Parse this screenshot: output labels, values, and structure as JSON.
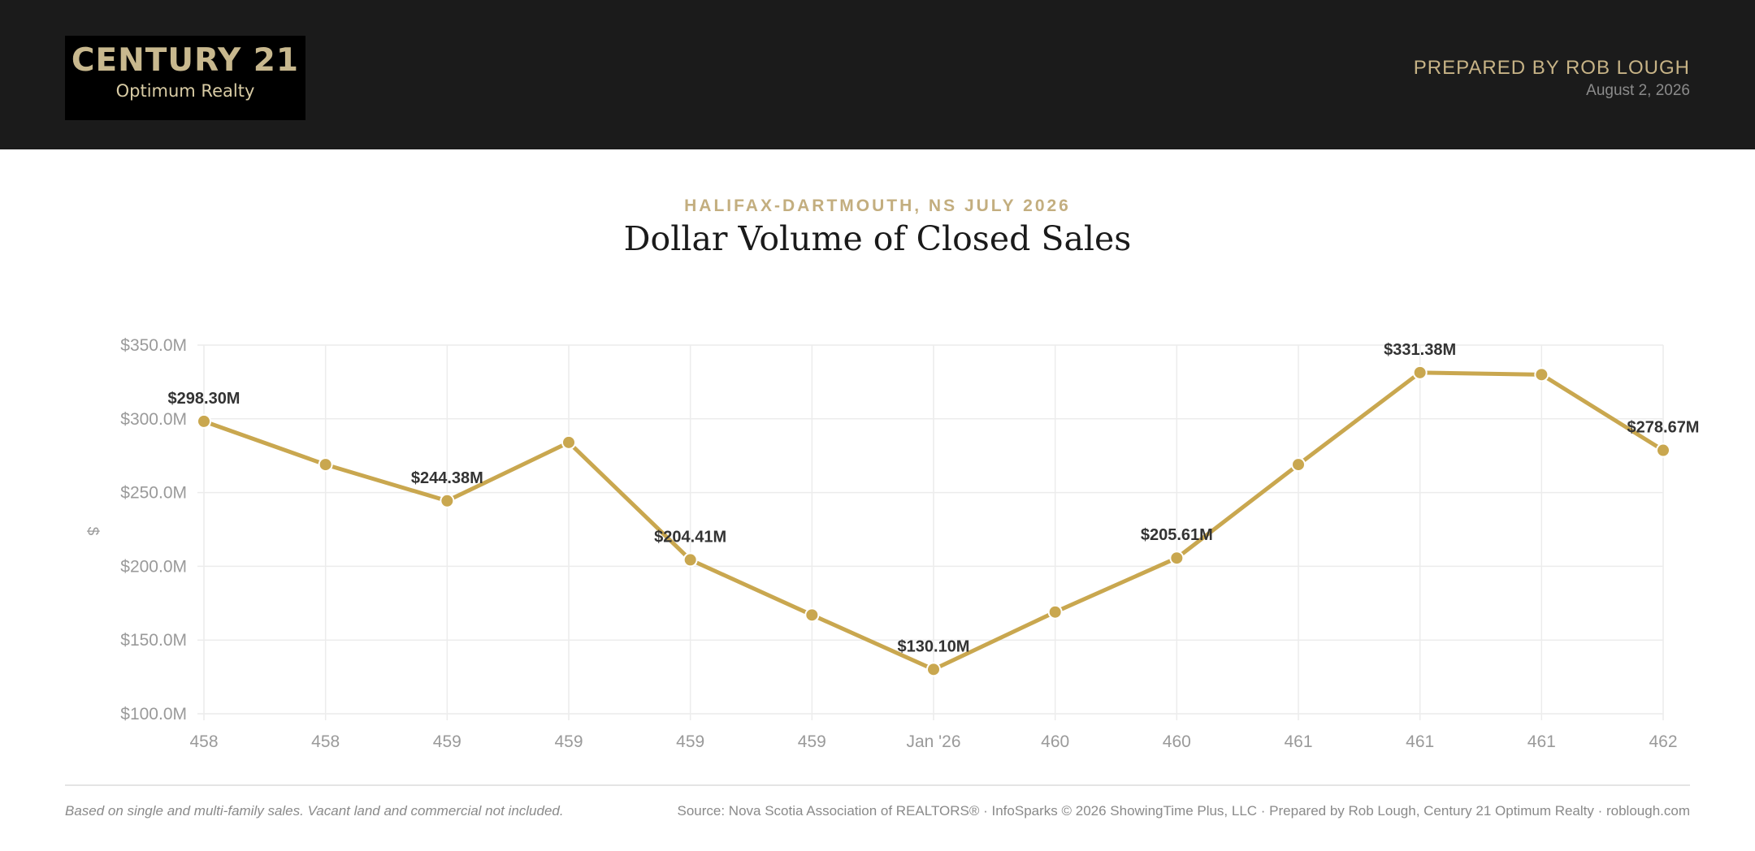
{
  "header": {
    "logo_brand": "CENTURY 21",
    "logo_sub": "Optimum Realty",
    "prepared_by": "PREPARED BY ROB LOUGH",
    "date": "August 2, 2026"
  },
  "report": {
    "subtitle": "HALIFAX-DARTMOUTH, NS JULY 2026",
    "title": "Dollar Volume of Closed Sales"
  },
  "footer": {
    "note": "Based on single and multi-family sales. Vacant land and commercial not included.",
    "source": "Source: Nova Scotia Association of REALTORS® · InfoSparks © 2026 ShowingTime Plus, LLC · Prepared by Rob Lough, Century 21 Optimum Realty · roblough.com"
  },
  "colors": {
    "header_bg": "#1b1b1b",
    "accent_gold": "#c9a74f",
    "grid": "#ececec"
  },
  "chart_data": {
    "type": "line",
    "title": "Dollar Volume of Closed Sales",
    "ylabel": "$",
    "xlabel": "",
    "ylim": [
      100,
      350
    ],
    "y_unit": "$M",
    "y_ticks": [
      "$100.0M",
      "$150.0M",
      "$200.0M",
      "$250.0M",
      "$300.0M",
      "$350.0M"
    ],
    "categories": [
      "458",
      "458",
      "459",
      "459",
      "459",
      "459",
      "Jan '26",
      "460",
      "460",
      "461",
      "461",
      "461",
      "462"
    ],
    "series": [
      {
        "values": [
          298.3,
          269,
          244.38,
          284,
          204.41,
          167,
          130.1,
          169,
          205.61,
          269,
          331.38,
          330,
          278.67
        ]
      }
    ],
    "data_labels": [
      "$298.30M",
      "",
      "$244.38M",
      "",
      "$204.41M",
      "",
      "$130.10M",
      "",
      "$205.61M",
      "",
      "$331.38M",
      "",
      "$278.67M"
    ],
    "grid": true,
    "legend": "none"
  }
}
